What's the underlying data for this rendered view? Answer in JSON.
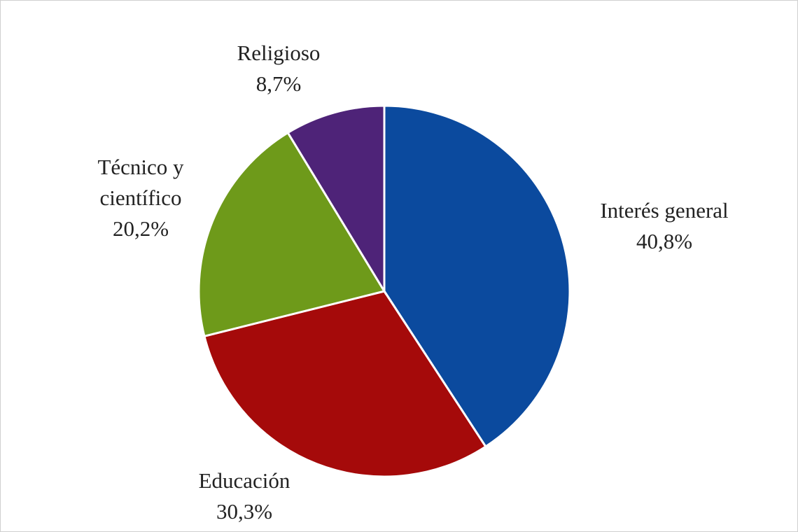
{
  "chart_data": {
    "type": "pie",
    "categories": [
      "Interés general",
      "Educación",
      "Técnico y científico",
      "Religioso"
    ],
    "values": [
      40.8,
      30.3,
      20.2,
      8.7
    ],
    "value_labels": [
      "40,8%",
      "30,3%",
      "20,2%",
      "8,7%"
    ],
    "colors": [
      "#0b4a9e",
      "#a50a0a",
      "#6e9a1a",
      "#4e2378"
    ]
  }
}
